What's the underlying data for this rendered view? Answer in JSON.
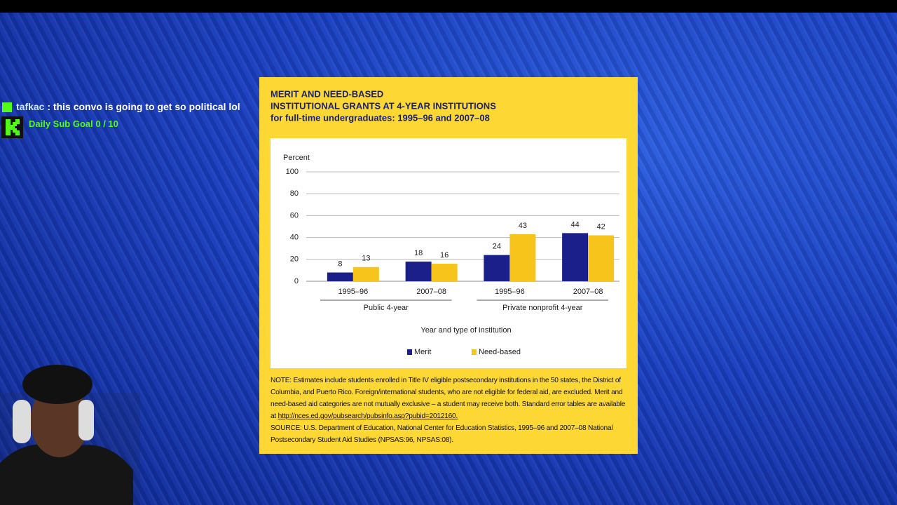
{
  "overlay": {
    "chat_user": "tafkac",
    "chat_message": " : this convo is going to get so political lol",
    "sub_goal": "Daily Sub Goal 0 / 10"
  },
  "chart_data": {
    "type": "bar",
    "title": [
      "MERIT AND NEED-BASED",
      "INSTITUTIONAL GRANTS AT 4-YEAR INSTITUTIONS"
    ],
    "subtitle": "for full-time undergraduates: 1995–96 and 2007–08",
    "y_label": "Percent",
    "x_label": "Year and type of institution",
    "categories": [
      "1995–96",
      "2007–08",
      "1995–96",
      "2007–08"
    ],
    "groups": [
      "Public 4-year",
      "Private nonprofit 4-year"
    ],
    "series": [
      {
        "name": "Merit",
        "color": "#1b1f8a",
        "values": [
          8,
          18,
          24,
          44
        ]
      },
      {
        "name": "Need-based",
        "color": "#f6c41a",
        "values": [
          13,
          16,
          43,
          42
        ]
      }
    ],
    "ylim": [
      0,
      100
    ],
    "yticks": [
      0,
      20,
      40,
      60,
      80,
      100
    ],
    "grid": true,
    "note": "NOTE: Estimates include students enrolled in Title IV eligible postsecondary institutions in the 50 states, the District of Columbia, and Puerto Rico. Foreign/international students, who are not eligible for federal aid, are excluded. Merit and need-based aid categories are not mutually exclusive – a student may receive both. Standard error tables are available at",
    "note_link": "http://nces.ed.gov/pubsearch/pubsinfo.asp?pubid=2012160.",
    "source": "SOURCE: U.S. Department of Education, National Center for Education Statistics, 1995–96 and 2007–08 National Postsecondary Student Aid Studies (NPSAS:96, NPSAS:08)."
  }
}
